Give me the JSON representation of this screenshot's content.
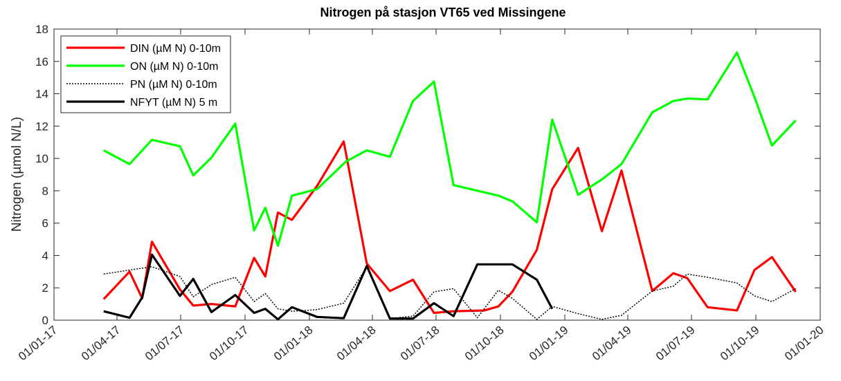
{
  "chart_data": {
    "type": "line",
    "title": "Nitrogen på stasjon VT65 ved Missingene",
    "y_label": "Nitrogen (µmol N/L)",
    "xlim": [
      "2017-01-01",
      "2020-01-01"
    ],
    "xticks": [
      {
        "value": "2017-01-01",
        "label": "01/01-17"
      },
      {
        "value": "2017-04-01",
        "label": "01/04-17"
      },
      {
        "value": "2017-07-01",
        "label": "01/07-17"
      },
      {
        "value": "2017-10-01",
        "label": "01/10-17"
      },
      {
        "value": "2018-01-01",
        "label": "01/01-18"
      },
      {
        "value": "2018-04-01",
        "label": "01/04-18"
      },
      {
        "value": "2018-07-01",
        "label": "01/07-18"
      },
      {
        "value": "2018-10-01",
        "label": "01/10-18"
      },
      {
        "value": "2019-01-01",
        "label": "01/01-19"
      },
      {
        "value": "2019-04-01",
        "label": "01/04-19"
      },
      {
        "value": "2019-07-01",
        "label": "01/07-19"
      },
      {
        "value": "2019-10-01",
        "label": "01/10-19"
      },
      {
        "value": "2020-01-01",
        "label": "01/01-20"
      }
    ],
    "ylim": [
      0,
      18
    ],
    "yticks": [
      0,
      2,
      4,
      6,
      8,
      10,
      12,
      14,
      16,
      18
    ],
    "legend": "upper left",
    "series": [
      {
        "name": "DIN (µM N) 0-10m",
        "color": "#ff0000",
        "linestyle": "solid",
        "x": [
          "2017-03-13",
          "2017-04-19",
          "2017-05-07",
          "2017-05-21",
          "2017-06-30",
          "2017-07-19",
          "2017-08-14",
          "2017-09-17",
          "2017-10-14",
          "2017-10-30",
          "2017-11-17",
          "2017-12-07",
          "2018-01-12",
          "2018-02-19",
          "2018-03-24",
          "2018-04-26",
          "2018-05-29",
          "2018-06-28",
          "2018-07-26",
          "2018-09-08",
          "2018-09-28",
          "2018-10-18",
          "2018-11-22",
          "2018-12-14",
          "2019-01-20",
          "2019-02-23",
          "2019-03-23",
          "2019-05-06",
          "2019-06-05",
          "2019-06-25",
          "2019-07-24",
          "2019-09-04",
          "2019-09-29",
          "2019-10-24",
          "2019-11-27"
        ],
        "values": [
          1.3,
          3.0,
          1.35,
          4.85,
          1.9,
          0.9,
          1.0,
          0.85,
          3.85,
          2.7,
          6.65,
          6.2,
          8.3,
          11.05,
          3.5,
          1.8,
          2.5,
          0.45,
          0.55,
          0.6,
          0.85,
          1.75,
          4.35,
          8.1,
          10.65,
          5.5,
          9.25,
          1.8,
          2.9,
          2.6,
          0.8,
          0.6,
          3.1,
          3.9,
          1.75
        ]
      },
      {
        "name": "ON (µM N) 0-10m",
        "color": "#00ff00",
        "linestyle": "solid",
        "x": [
          "2017-03-13",
          "2017-04-19",
          "2017-05-21",
          "2017-06-30",
          "2017-07-19",
          "2017-08-14",
          "2017-09-17",
          "2017-10-14",
          "2017-10-30",
          "2017-11-17",
          "2017-12-07",
          "2018-01-12",
          "2018-02-22",
          "2018-03-24",
          "2018-04-26",
          "2018-05-29",
          "2018-06-28",
          "2018-07-26",
          "2018-09-28",
          "2018-10-18",
          "2018-11-22",
          "2018-12-14",
          "2019-01-20",
          "2019-02-23",
          "2019-03-23",
          "2019-05-06",
          "2019-06-05",
          "2019-06-25",
          "2019-07-24",
          "2019-09-04",
          "2019-09-29",
          "2019-10-24",
          "2019-11-27"
        ],
        "values": [
          10.5,
          9.65,
          11.15,
          10.75,
          8.95,
          10.05,
          12.15,
          5.55,
          6.95,
          4.6,
          7.7,
          8.1,
          9.8,
          10.5,
          10.1,
          13.55,
          14.75,
          8.35,
          7.7,
          7.35,
          6.05,
          12.4,
          7.75,
          8.7,
          9.65,
          12.85,
          13.55,
          13.7,
          13.65,
          16.55,
          13.8,
          10.8,
          12.35
        ]
      },
      {
        "name": "PN (µM N) 0-10m",
        "color": "#000000",
        "linestyle": "dotted",
        "x": [
          "2017-03-13",
          "2017-04-19",
          "2017-05-21",
          "2017-06-30",
          "2017-07-19",
          "2017-08-14",
          "2017-09-17",
          "2017-10-14",
          "2017-10-30",
          "2017-11-17",
          "2017-12-07",
          "2018-01-12",
          "2018-02-19",
          "2018-03-24",
          "2018-04-26",
          "2018-05-29",
          "2018-06-28",
          "2018-07-26",
          "2018-08-29",
          "2018-09-28",
          "2018-10-18",
          "2018-11-22",
          "2018-12-14",
          "2019-01-20",
          "2019-02-23",
          "2019-03-23",
          "2019-05-06",
          "2019-06-05",
          "2019-06-25",
          "2019-07-24",
          "2019-09-04",
          "2019-09-29",
          "2019-10-24",
          "2019-11-27"
        ],
        "values": [
          2.85,
          3.1,
          3.3,
          2.7,
          1.45,
          2.2,
          2.65,
          1.15,
          1.65,
          0.7,
          0.55,
          0.65,
          1.05,
          3.3,
          0.1,
          0.25,
          1.75,
          1.95,
          0.15,
          1.85,
          1.35,
          0.05,
          0.85,
          0.4,
          0.05,
          0.3,
          1.8,
          2.1,
          2.85,
          2.65,
          2.3,
          1.5,
          1.15,
          1.95
        ]
      },
      {
        "name": "NFYT (µM N) 5 m",
        "color": "#000000",
        "linestyle": "solid",
        "x": [
          "2017-03-13",
          "2017-04-19",
          "2017-05-07",
          "2017-05-21",
          "2017-06-30",
          "2017-07-19",
          "2017-08-14",
          "2017-09-17",
          "2017-10-14",
          "2017-10-30",
          "2017-11-17",
          "2017-12-07",
          "2018-01-12",
          "2018-02-19",
          "2018-03-24",
          "2018-04-26",
          "2018-05-29",
          "2018-06-28",
          "2018-07-26",
          "2018-08-29",
          "2018-09-28",
          "2018-10-18",
          "2018-11-22",
          "2018-12-14"
        ],
        "values": [
          0.55,
          0.15,
          1.4,
          4.05,
          1.5,
          2.55,
          0.5,
          1.55,
          0.45,
          0.7,
          0.05,
          0.8,
          0.2,
          0.12,
          3.35,
          0.1,
          0.1,
          1.05,
          0.25,
          3.45,
          3.45,
          3.45,
          2.5,
          0.7
        ]
      }
    ]
  }
}
